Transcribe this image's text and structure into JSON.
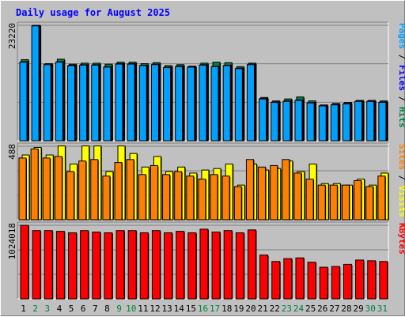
{
  "chart_data": {
    "type": "bar",
    "title": "Daily usage for August 2025",
    "categories": [
      "1",
      "2",
      "3",
      "4",
      "5",
      "6",
      "7",
      "8",
      "9",
      "10",
      "11",
      "12",
      "13",
      "14",
      "15",
      "16",
      "17",
      "18",
      "19",
      "20",
      "21",
      "22",
      "23",
      "24",
      "25",
      "26",
      "27",
      "28",
      "29",
      "30",
      "31"
    ],
    "weekend_days": [
      "2",
      "3",
      "9",
      "10",
      "16",
      "17",
      "23",
      "24",
      "30",
      "31"
    ],
    "panels": [
      {
        "ylabel_max": "23220",
        "ymax": 23220,
        "right_labels": [
          {
            "text": "Pages",
            "color": "#00a0ff"
          },
          {
            "text": " / ",
            "color": "#000000"
          },
          {
            "text": "Files",
            "color": "#0000ff"
          },
          {
            "text": " / ",
            "color": "#000000"
          },
          {
            "text": "Hits",
            "color": "#008040"
          }
        ],
        "series": [
          {
            "name": "Hits",
            "color": "#008040",
            "values": [
              16300,
              23220,
              15500,
              16400,
              15400,
              15600,
              15600,
              15400,
              15800,
              15800,
              15500,
              15700,
              15100,
              15300,
              15000,
              15600,
              15800,
              15700,
              14900,
              15600,
              8700,
              8000,
              8400,
              8800,
              8000,
              7200,
              7500,
              7700,
              8100,
              8100,
              8000
            ]
          },
          {
            "name": "Files",
            "color": "#0000ff",
            "values": [
              15900,
              23220,
              15400,
              15900,
              15200,
              15300,
              15300,
              14900,
              15500,
              15500,
              15200,
              15400,
              14800,
              15000,
              14900,
              15300,
              15000,
              15200,
              14600,
              15400,
              8500,
              7800,
              8000,
              8200,
              7700,
              7100,
              7300,
              7500,
              8000,
              8000,
              7800
            ]
          },
          {
            "name": "Pages",
            "color": "#00a0ff",
            "values": [
              15800,
              23100,
              15300,
              15800,
              15100,
              15200,
              15200,
              14800,
              15400,
              15400,
              15100,
              15300,
              14700,
              14900,
              14800,
              15200,
              14900,
              15100,
              14500,
              15300,
              8400,
              7700,
              7900,
              8100,
              7600,
              7000,
              7200,
              7400,
              7900,
              7900,
              7700
            ]
          }
        ]
      },
      {
        "ylabel_max": "488",
        "ymax": 488,
        "right_labels": [
          {
            "text": "Sites",
            "color": "#ff8000"
          },
          {
            "text": " / ",
            "color": "#000000"
          },
          {
            "text": "Visits",
            "color": "#ffff00"
          }
        ],
        "series": [
          {
            "name": "Visits",
            "color": "#ffff00",
            "values": [
              430,
              480,
              430,
              490,
              370,
              490,
              490,
              320,
              490,
              440,
              350,
              420,
              320,
              350,
              310,
              330,
              340,
              370,
              230,
              370,
              330,
              340,
              390,
              320,
              370,
              240,
              240,
              230,
              270,
              230,
              310
            ]
          },
          {
            "name": "Sites",
            "color": "#ff8000",
            "values": [
              410,
              470,
              410,
              420,
              320,
              390,
              400,
              290,
              380,
              400,
              300,
              360,
              300,
              320,
              290,
              270,
              300,
              290,
              220,
              400,
              350,
              360,
              400,
              310,
              270,
              230,
              230,
              230,
              260,
              220,
              290
            ]
          }
        ]
      },
      {
        "ylabel_max": "1024018",
        "ymax": 1024018,
        "right_labels": [
          {
            "text": "KBytes",
            "color": "#ff0000"
          }
        ],
        "series": [
          {
            "name": "KBytes",
            "color": "#ff0000",
            "values": [
              1024018,
              950000,
              950000,
              940000,
              920000,
              950000,
              930000,
              920000,
              950000,
              950000,
              920000,
              950000,
              920000,
              940000,
              920000,
              970000,
              930000,
              950000,
              920000,
              960000,
              610000,
              520000,
              560000,
              570000,
              510000,
              440000,
              450000,
              480000,
              540000,
              530000,
              520000
            ]
          }
        ]
      }
    ]
  }
}
